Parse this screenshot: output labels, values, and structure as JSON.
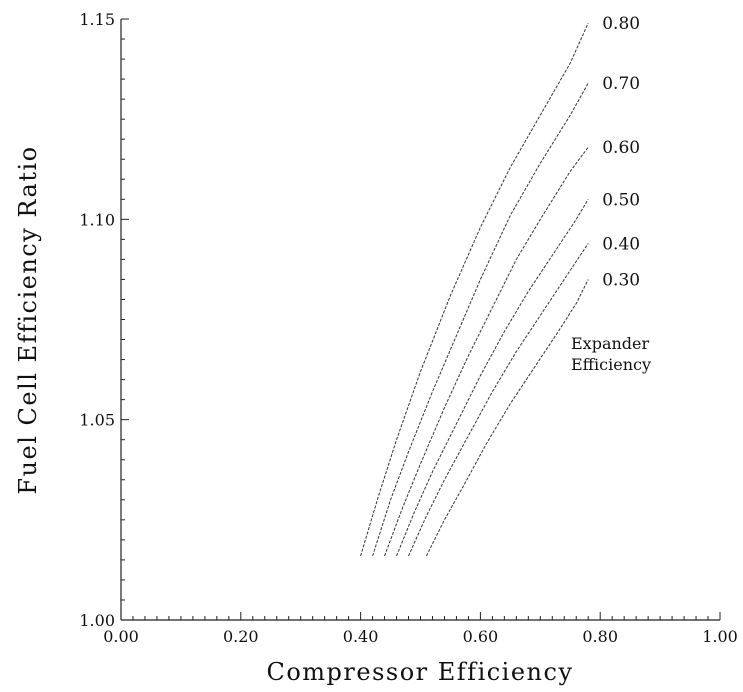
{
  "chart_data": {
    "type": "line",
    "xlabel": "Compressor Efficiency",
    "ylabel": "Fuel Cell Efficiency Ratio",
    "xlim": [
      0.0,
      1.0
    ],
    "ylim": [
      1.0,
      1.15
    ],
    "x_ticks": [
      "0.00",
      "0.20",
      "0.40",
      "0.60",
      "0.80",
      "1.00"
    ],
    "y_ticks": [
      "1.00",
      "1.05",
      "1.10",
      "1.15"
    ],
    "legend_title": [
      "Expander",
      "Efficiency"
    ],
    "grid": false,
    "series": [
      {
        "name": "0.80",
        "x": [
          0.4,
          0.43,
          0.46,
          0.5,
          0.55,
          0.6,
          0.65,
          0.7,
          0.75,
          0.78
        ],
        "y": [
          1.016,
          1.031,
          1.045,
          1.062,
          1.081,
          1.098,
          1.113,
          1.126,
          1.139,
          1.149
        ]
      },
      {
        "name": "0.70",
        "x": [
          0.42,
          0.45,
          0.48,
          0.52,
          0.56,
          0.6,
          0.65,
          0.7,
          0.75,
          0.78
        ],
        "y": [
          1.016,
          1.03,
          1.042,
          1.057,
          1.071,
          1.085,
          1.101,
          1.114,
          1.126,
          1.134
        ]
      },
      {
        "name": "0.60",
        "x": [
          0.44,
          0.47,
          0.5,
          0.54,
          0.58,
          0.62,
          0.66,
          0.7,
          0.75,
          0.78
        ],
        "y": [
          1.016,
          1.028,
          1.039,
          1.053,
          1.066,
          1.078,
          1.09,
          1.1,
          1.112,
          1.118
        ]
      },
      {
        "name": "0.50",
        "x": [
          0.46,
          0.49,
          0.52,
          0.56,
          0.6,
          0.64,
          0.68,
          0.72,
          0.76,
          0.78
        ],
        "y": [
          1.016,
          1.027,
          1.037,
          1.049,
          1.061,
          1.072,
          1.082,
          1.091,
          1.1,
          1.105
        ]
      },
      {
        "name": "0.40",
        "x": [
          0.48,
          0.51,
          0.54,
          0.58,
          0.62,
          0.66,
          0.7,
          0.74,
          0.78
        ],
        "y": [
          1.016,
          1.026,
          1.035,
          1.046,
          1.057,
          1.067,
          1.076,
          1.085,
          1.094
        ]
      },
      {
        "name": "0.30",
        "x": [
          0.51,
          0.54,
          0.57,
          0.61,
          0.65,
          0.69,
          0.73,
          0.76,
          0.78
        ],
        "y": [
          1.016,
          1.025,
          1.033,
          1.044,
          1.054,
          1.063,
          1.072,
          1.079,
          1.085
        ]
      }
    ]
  }
}
